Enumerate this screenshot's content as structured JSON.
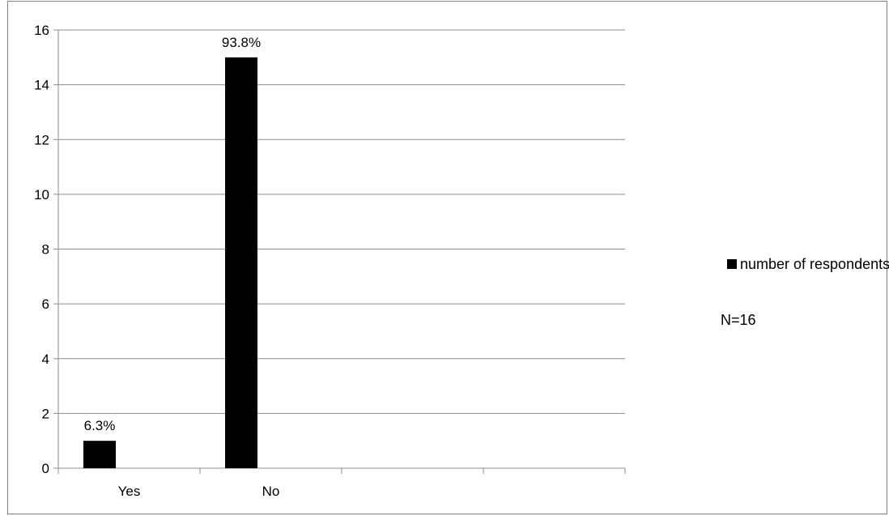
{
  "chart_data": {
    "type": "bar",
    "categories": [
      "Yes",
      "No",
      "",
      ""
    ],
    "series": [
      {
        "name": "number of respondents",
        "values": [
          1,
          15,
          null,
          null
        ],
        "labels": [
          "6.3%",
          "93.8%",
          "",
          ""
        ],
        "color": "#000000"
      }
    ],
    "ylim": [
      0,
      16
    ],
    "yticks": [
      0,
      2,
      4,
      6,
      8,
      10,
      12,
      14,
      16
    ],
    "grid": true,
    "legend_position": "right",
    "note": "N=16"
  }
}
